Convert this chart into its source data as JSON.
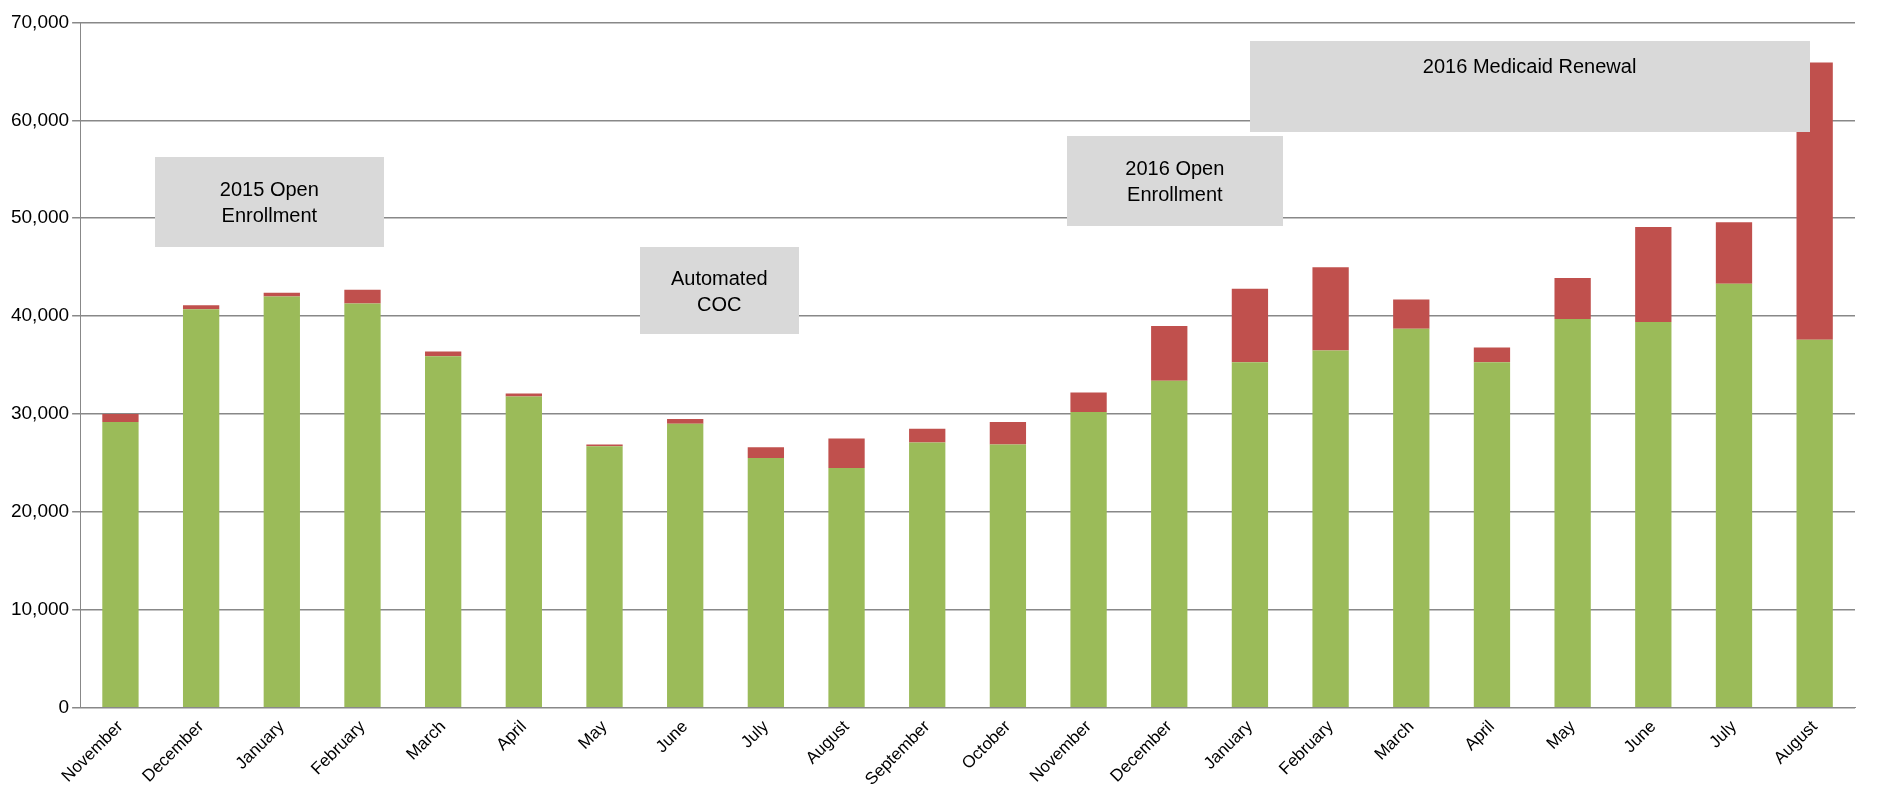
{
  "chart_data": {
    "type": "bar",
    "stacked": true,
    "categories": [
      "November",
      "December",
      "January",
      "February",
      "March",
      "April",
      "May",
      "June",
      "July",
      "August",
      "September",
      "October",
      "November",
      "December",
      "January",
      "February",
      "March",
      "April",
      "May",
      "June",
      "July",
      "August"
    ],
    "series": [
      {
        "color": "#9bbb59",
        "values": [
          29200,
          40700,
          42000,
          41300,
          35900,
          31800,
          26700,
          29000,
          25500,
          24500,
          27100,
          26900,
          30200,
          33400,
          35300,
          36500,
          38700,
          35300,
          39700,
          39400,
          43300,
          37600
        ]
      },
      {
        "color": "#c0504d",
        "values": [
          800,
          400,
          400,
          1400,
          500,
          300,
          200,
          500,
          1100,
          3000,
          1400,
          2300,
          2000,
          5600,
          7500,
          8500,
          3000,
          1500,
          4200,
          9700,
          6300,
          28300
        ]
      }
    ],
    "ylim": [
      0,
      70000
    ],
    "yticks": [
      0,
      {
        "value": 10000,
        "label": "10,000"
      },
      {
        "value": 20000,
        "label": "20,000"
      },
      {
        "value": 30000,
        "label": "30,000"
      },
      {
        "value": 40000,
        "label": "40,000"
      },
      {
        "value": 50000,
        "label": "50,000"
      },
      {
        "value": 60000,
        "label": "60,000"
      },
      {
        "value": 70000,
        "label": "70,000"
      }
    ],
    "grid": "y",
    "legend": false,
    "annotations": [
      "2015 Open Enrollment",
      "Automated COC",
      "2016 Open Enrollment",
      "2016 Medicaid Renewal"
    ]
  }
}
